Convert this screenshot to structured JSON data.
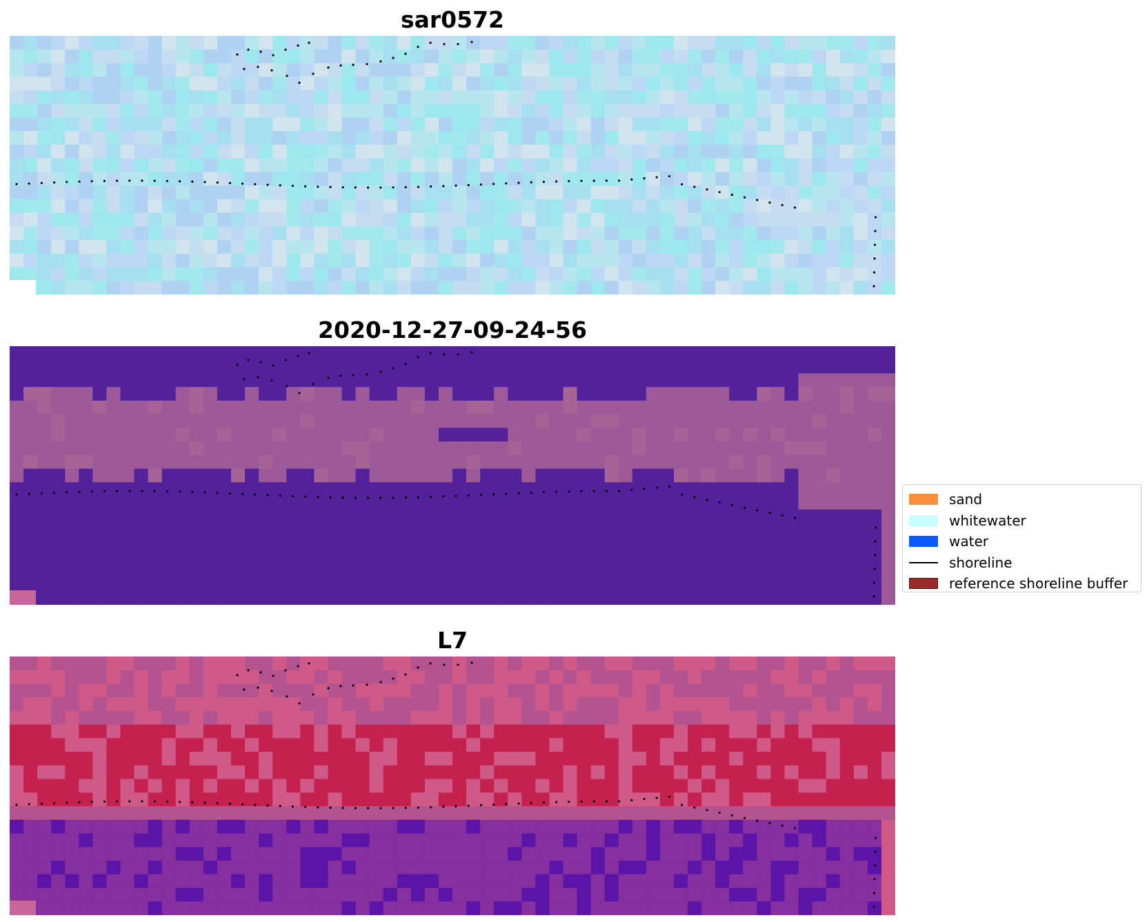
{
  "panels": [
    {
      "title": "sar0572",
      "style": "sar",
      "colors": [
        "#b8e6ee",
        "#a6dff0",
        "#bcd8f4",
        "#c6dcf0",
        "#a2e9ee",
        "#b0d2f2",
        "#d2e4ee",
        "#9ce8ee"
      ]
    },
    {
      "title": "2020-12-27-09-24-56",
      "style": "classified",
      "colors": {
        "water": "#53229a",
        "whitewater": "#9e5a98",
        "mix": "#a66496",
        "highlight": "#c8669a"
      }
    },
    {
      "title": "L7",
      "style": "rgb",
      "colors": {
        "red": "#c5214f",
        "pink": "#cf5a87",
        "purple": "#862f9e",
        "violet": "#5a14a8",
        "mauve": "#b35491"
      }
    }
  ],
  "legend": {
    "items": [
      {
        "label": "sand",
        "color": "#ff8c38",
        "kind": "patch"
      },
      {
        "label": "whitewater",
        "color": "#c6ffff",
        "kind": "patch"
      },
      {
        "label": "water",
        "color": "#0a5aff",
        "kind": "patch"
      },
      {
        "label": "shoreline",
        "color": "#000000",
        "kind": "line"
      },
      {
        "label": "reference shoreline buffer",
        "color": "#9a2a2a",
        "kind": "patch"
      }
    ]
  }
}
